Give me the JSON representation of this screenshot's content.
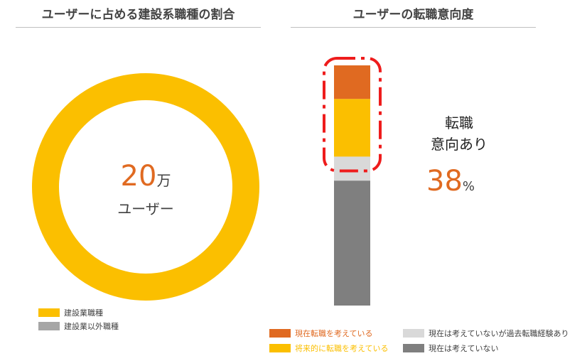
{
  "left_panel": {
    "title": "ユーザーに占める建設系職種の割合",
    "center_value": "20",
    "center_unit": "万",
    "center_label": "ユーザー"
  },
  "right_panel": {
    "title": "ユーザーの転職意向度",
    "highlight_label_line1": "転職",
    "highlight_label_line2": "意向あり",
    "highlight_value": "38",
    "highlight_unit": "%"
  },
  "chart_data": [
    {
      "type": "pie",
      "title": "ユーザーに占める建設系職種の割合",
      "categories": [
        "建設業職種",
        "建設業以外職種"
      ],
      "values": [
        100,
        0
      ],
      "colors": [
        "#fbbf00",
        "#a6a6a6"
      ],
      "legend": "bottom-left"
    },
    {
      "type": "bar",
      "title": "ユーザーの転職意向度",
      "categories": [
        ""
      ],
      "series": [
        {
          "name": "現在転職を考えている",
          "values": [
            14
          ],
          "color": "#e06a21"
        },
        {
          "name": "将来的に転職を考えている",
          "values": [
            24
          ],
          "color": "#fbbf00"
        },
        {
          "name": "現在は考えていないが過去転職経験あり",
          "values": [
            10
          ],
          "color": "#d9d9d9"
        },
        {
          "name": "現在は考えていない",
          "values": [
            52
          ],
          "color": "#7f7f7f"
        }
      ],
      "stacked": true,
      "ylim": [
        0,
        100
      ],
      "legend": "bottom"
    }
  ]
}
